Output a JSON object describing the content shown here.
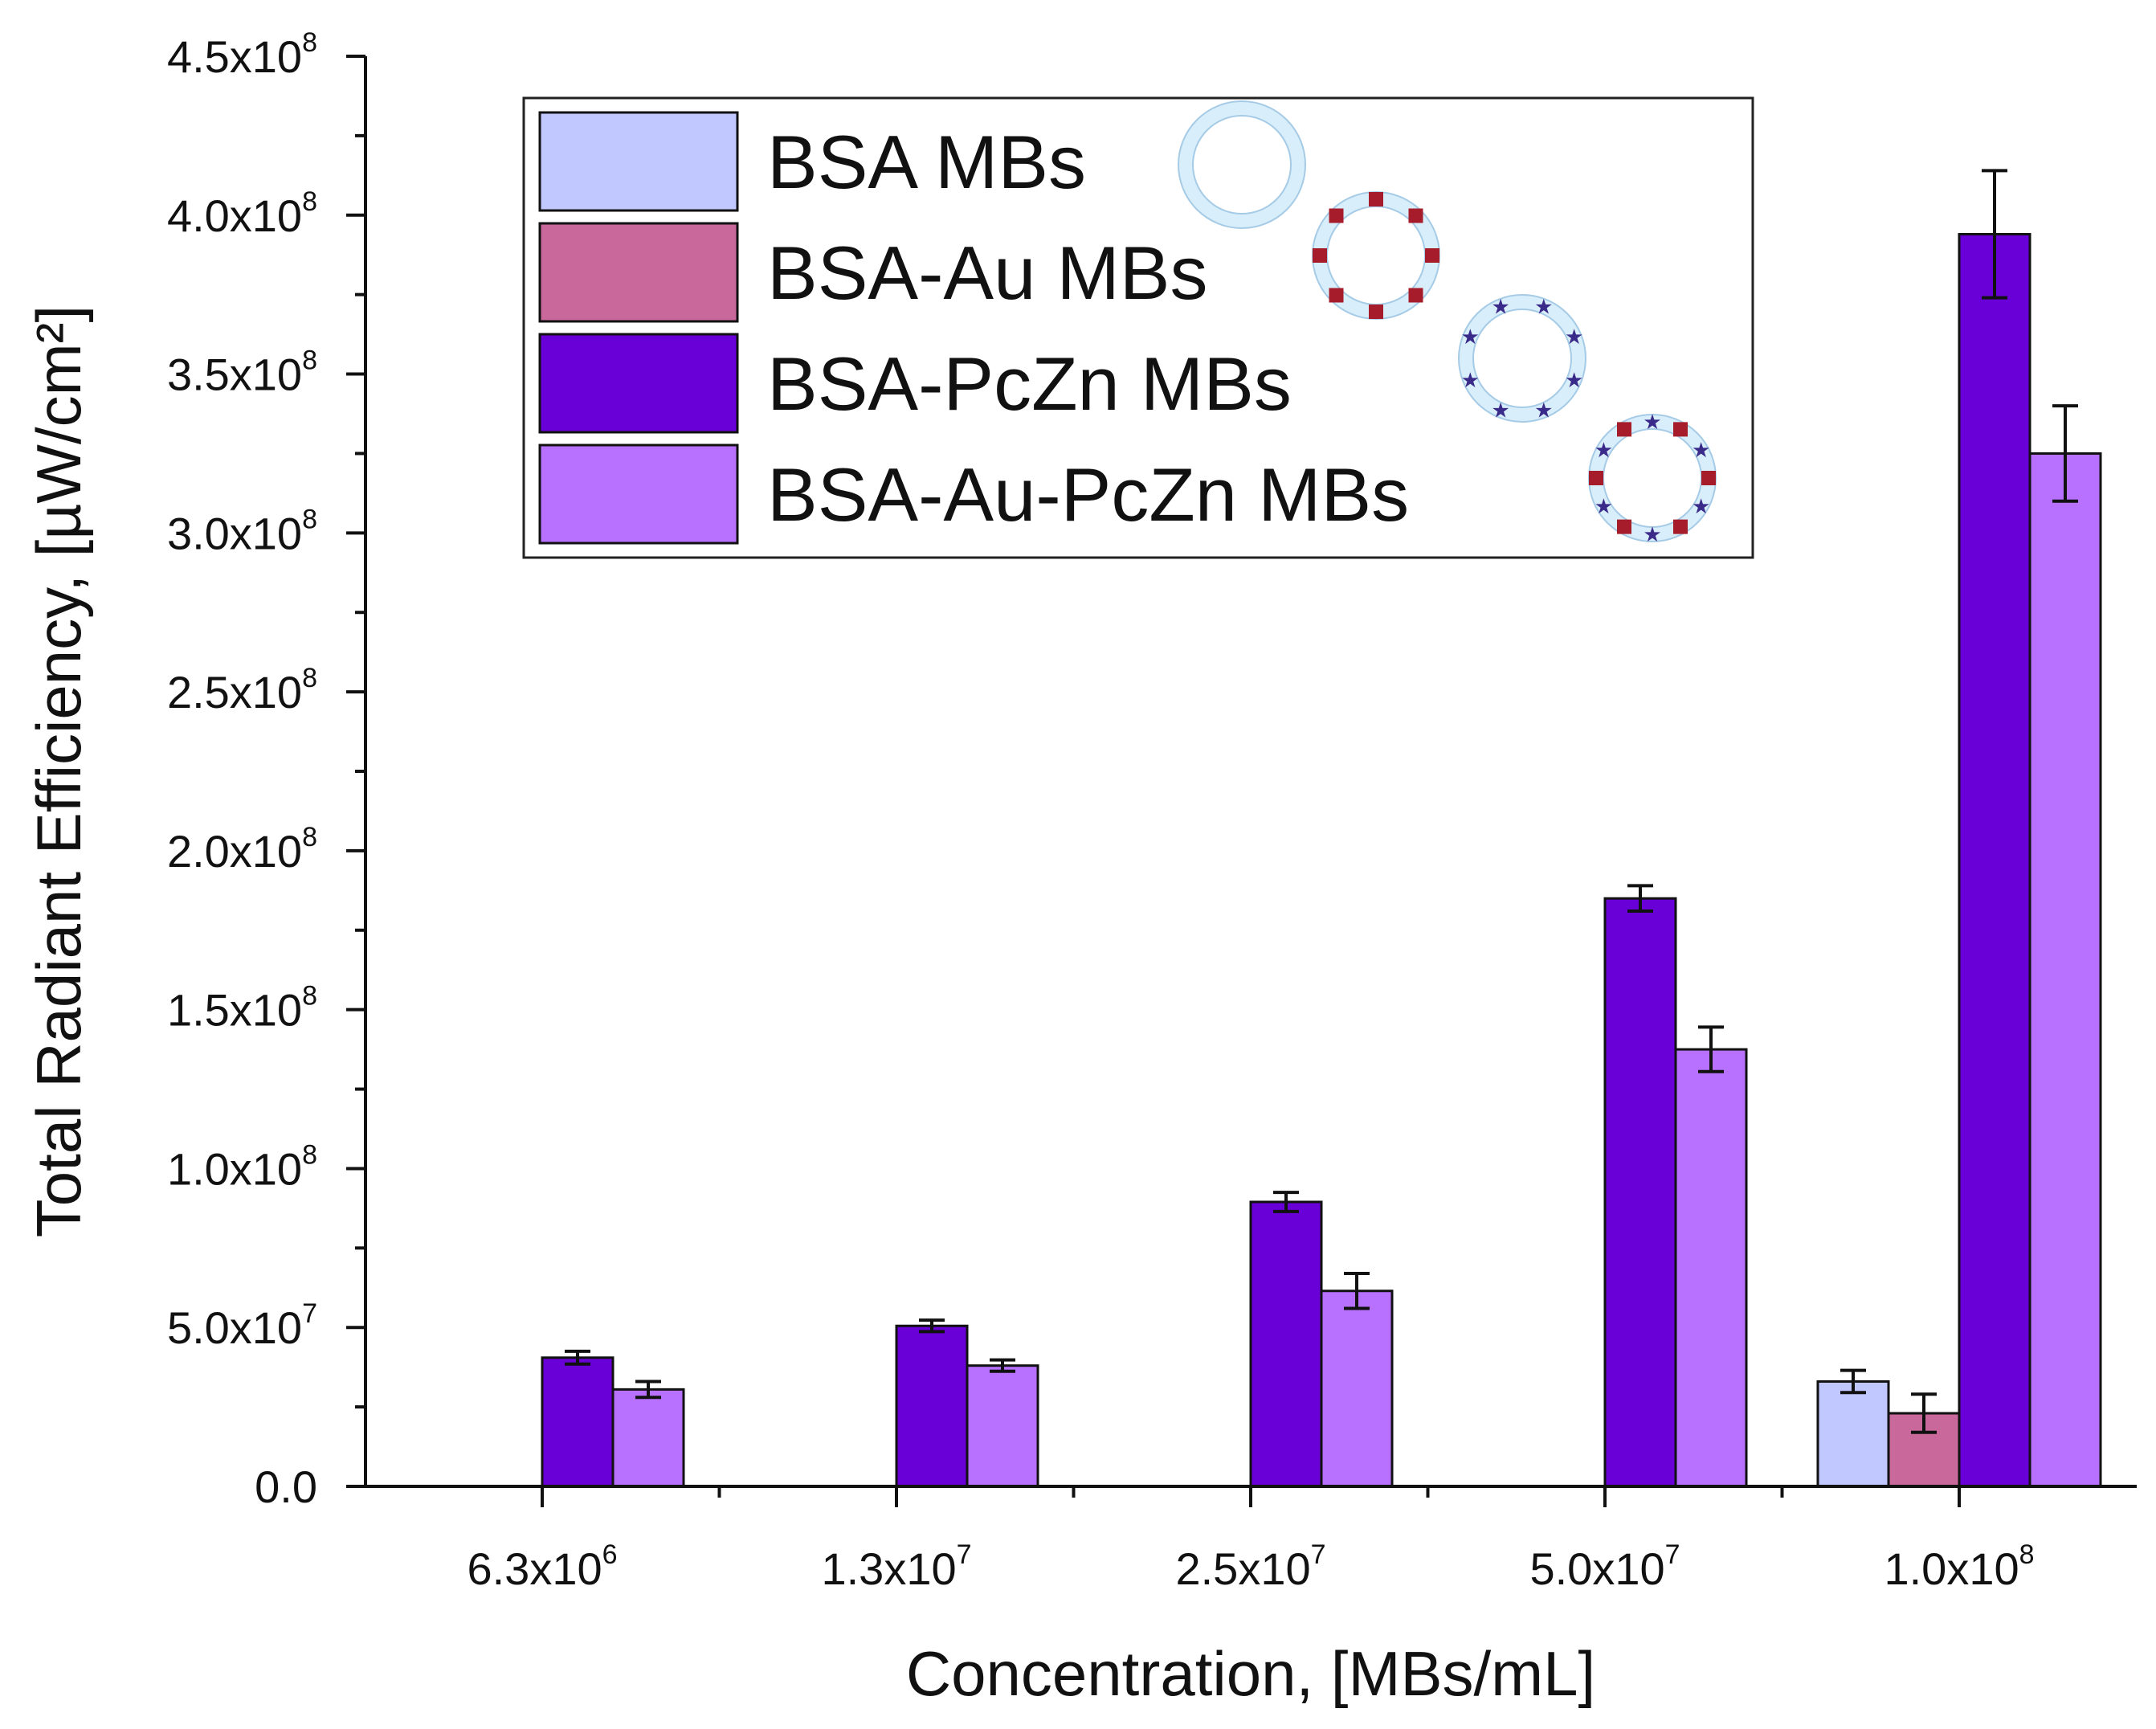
{
  "chart_data": {
    "type": "bar",
    "title": "",
    "xlabel": "Concentration, [MBs/mL]",
    "ylabel": "Total Radiant Efficiency, [µW/cm²]",
    "ylim": [
      0,
      450000000
    ],
    "y_tick_labels": [
      {
        "mantissa": "0.0",
        "exp": ""
      },
      {
        "mantissa": "5.0x10",
        "exp": "7"
      },
      {
        "mantissa": "1.0x10",
        "exp": "8"
      },
      {
        "mantissa": "1.5x10",
        "exp": "8"
      },
      {
        "mantissa": "2.0x10",
        "exp": "8"
      },
      {
        "mantissa": "2.5x10",
        "exp": "8"
      },
      {
        "mantissa": "3.0x10",
        "exp": "8"
      },
      {
        "mantissa": "3.5x10",
        "exp": "8"
      },
      {
        "mantissa": "4.0x10",
        "exp": "8"
      },
      {
        "mantissa": "4.5x10",
        "exp": "8"
      }
    ],
    "y_tick_values": [
      0,
      50000000,
      100000000,
      150000000,
      200000000,
      250000000,
      300000000,
      350000000,
      400000000,
      450000000
    ],
    "categories": [
      {
        "mantissa": "6.3x10",
        "exp": "6"
      },
      {
        "mantissa": "1.3x10",
        "exp": "7"
      },
      {
        "mantissa": "2.5x10",
        "exp": "7"
      },
      {
        "mantissa": "5.0x10",
        "exp": "7"
      },
      {
        "mantissa": "1.0x10",
        "exp": "8"
      }
    ],
    "series": [
      {
        "name": "BSA MBs",
        "color": "#c0c8ff",
        "marker": "plain-shell",
        "values": [
          null,
          null,
          null,
          null,
          33000000
        ],
        "errors": [
          null,
          null,
          null,
          null,
          3500000
        ]
      },
      {
        "name": "BSA-Au MBs",
        "color": "#c9689a",
        "marker": "gold-shell",
        "values": [
          null,
          null,
          null,
          null,
          23000000
        ],
        "errors": [
          null,
          null,
          null,
          null,
          6000000
        ]
      },
      {
        "name": "BSA-PcZn MBs",
        "color": "#6a00d8",
        "marker": "pczn-shell",
        "values": [
          40500000,
          50500000,
          89500000,
          185000000,
          394000000
        ],
        "errors": [
          2000000,
          1800000,
          3000000,
          4000000,
          20000000
        ]
      },
      {
        "name": "BSA-Au-PcZn MBs",
        "color": "#b870ff",
        "marker": "au-pczn-shell",
        "values": [
          30500000,
          38000000,
          61500000,
          137500000,
          325000000
        ],
        "errors": [
          2500000,
          1800000,
          5500000,
          7000000,
          15000000
        ]
      }
    ],
    "grid": false,
    "legend_position": "top-left"
  }
}
